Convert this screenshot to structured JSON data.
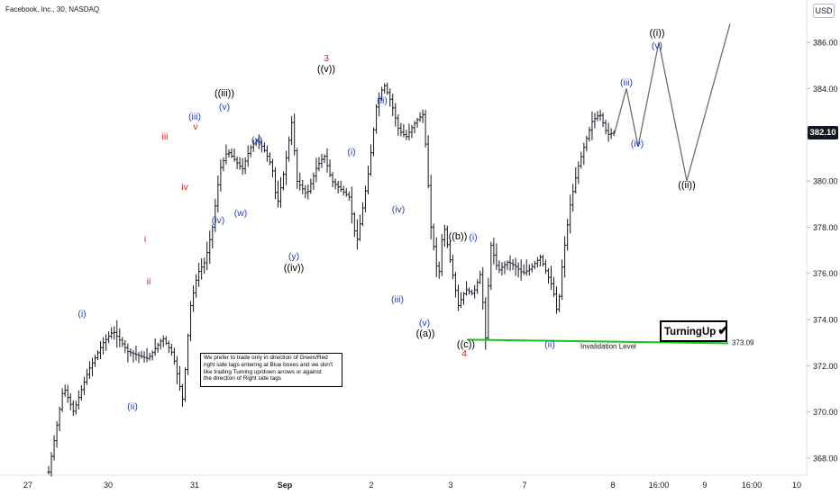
{
  "header": {
    "symbol": "Facebook, Inc., 30, NASDAQ",
    "currency": "USD"
  },
  "last_price": "382.10",
  "note": {
    "lines": [
      "We prefer to trade only in direction of Green/Red",
      "right side tags entering at Blue boxes and we don't",
      "like trading Turning up/down arrows or against",
      "the direction of Right side tags"
    ]
  },
  "brand": {
    "label": "TurningUp",
    "check": "✔"
  },
  "colors": {
    "blue": "#1e3fc2",
    "red": "#d41f1f",
    "black": "#000000",
    "green": "#19c419",
    "bars": "#131722"
  },
  "chart_data": {
    "type": "line",
    "title": "",
    "x_tick_labels": [
      "27",
      "30",
      "31",
      "Sep",
      "2",
      "3",
      "7",
      "8",
      "16:00",
      "9",
      "16:00",
      "10"
    ],
    "y_ticks": [
      368,
      370,
      372,
      374,
      376,
      378,
      380,
      382,
      384,
      386
    ],
    "y_tick_labels": [
      "368.00",
      "370.00",
      "372.00",
      "374.00",
      "376.00",
      "378.00",
      "380.00",
      "382.00",
      "384.00",
      "386.00"
    ],
    "ylim": [
      367.3,
      387.6
    ],
    "last_price": 382.1,
    "price_path": [
      [
        0.0,
        367.4
      ],
      [
        0.3,
        371.1
      ],
      [
        0.5,
        370.0
      ],
      [
        0.8,
        371.8
      ],
      [
        1.1,
        373.0
      ],
      [
        1.3,
        373.5
      ],
      [
        1.6,
        372.6
      ],
      [
        2.0,
        372.3
      ],
      [
        2.3,
        373.2
      ],
      [
        2.5,
        372.5
      ],
      [
        2.7,
        370.5
      ],
      [
        2.85,
        374.5
      ],
      [
        3.0,
        376.0
      ],
      [
        3.15,
        376.5
      ],
      [
        3.3,
        378.0
      ],
      [
        3.45,
        380.5
      ],
      [
        3.6,
        381.3
      ],
      [
        3.75,
        380.9
      ],
      [
        3.9,
        380.5
      ],
      [
        4.05,
        381.4
      ],
      [
        4.2,
        381.8
      ],
      [
        4.35,
        381.3
      ],
      [
        4.5,
        380.6
      ],
      [
        4.6,
        378.9
      ],
      [
        4.75,
        380.5
      ],
      [
        4.9,
        382.6
      ],
      [
        5.0,
        380.0
      ],
      [
        5.2,
        379.4
      ],
      [
        5.4,
        380.6
      ],
      [
        5.55,
        381.1
      ],
      [
        5.7,
        380.0
      ],
      [
        5.9,
        379.6
      ],
      [
        6.05,
        379.3
      ],
      [
        6.2,
        377.3
      ],
      [
        6.3,
        378.5
      ],
      [
        6.45,
        380.5
      ],
      [
        6.6,
        383.2
      ],
      [
        6.75,
        384.2
      ],
      [
        6.9,
        383.4
      ],
      [
        7.05,
        382.2
      ],
      [
        7.2,
        381.9
      ],
      [
        7.4,
        382.6
      ],
      [
        7.55,
        382.9
      ],
      [
        7.7,
        378.0
      ],
      [
        7.85,
        375.7
      ],
      [
        7.95,
        378.2
      ],
      [
        8.1,
        376.4
      ],
      [
        8.25,
        374.6
      ],
      [
        8.4,
        375.3
      ],
      [
        8.55,
        375.1
      ],
      [
        8.7,
        376.0
      ],
      [
        8.8,
        373.2
      ],
      [
        8.9,
        377.3
      ],
      [
        9.05,
        376.1
      ],
      [
        9.25,
        376.5
      ],
      [
        9.4,
        376.3
      ],
      [
        9.55,
        376.0
      ],
      [
        9.7,
        376.2
      ],
      [
        9.9,
        376.7
      ],
      [
        10.05,
        375.9
      ],
      [
        10.15,
        375.4
      ],
      [
        10.25,
        374.2
      ],
      [
        10.35,
        376.5
      ],
      [
        10.5,
        378.9
      ],
      [
        10.65,
        380.5
      ],
      [
        10.8,
        381.6
      ],
      [
        10.95,
        382.6
      ],
      [
        11.1,
        382.9
      ],
      [
        11.25,
        382.0
      ],
      [
        11.4,
        382.1
      ]
    ],
    "projection_path": [
      [
        382.1,
        382.1
      ],
      [
        384.0,
        384.0
      ],
      [
        381.5,
        381.5
      ],
      [
        386.0,
        386.0
      ],
      [
        380.0,
        380.0
      ],
      [
        386.8,
        386.8
      ]
    ],
    "invalidation": {
      "label": "Invalidation Level",
      "value": 373.09,
      "value_label": "373.09"
    },
    "wave_labels": [
      {
        "text": "(i)",
        "color": "blue"
      },
      {
        "text": "(ii)",
        "color": "blue"
      },
      {
        "text": "i",
        "color": "red"
      },
      {
        "text": "ii",
        "color": "red"
      },
      {
        "text": "iii",
        "color": "red"
      },
      {
        "text": "iv",
        "color": "red"
      },
      {
        "text": "v",
        "color": "red"
      },
      {
        "text": "(iii)",
        "color": "blue"
      },
      {
        "text": "(iv)",
        "color": "blue"
      },
      {
        "text": "(v)",
        "color": "blue"
      },
      {
        "text": "((iii))",
        "color": "black"
      },
      {
        "text": "(w)",
        "color": "blue"
      },
      {
        "text": "(x)",
        "color": "blue"
      },
      {
        "text": "(y)",
        "color": "blue"
      },
      {
        "text": "((iv))",
        "color": "black"
      },
      {
        "text": "3",
        "color": "red"
      },
      {
        "text": "((v))",
        "color": "black"
      },
      {
        "text": "(i)",
        "color": "blue"
      },
      {
        "text": "(ii)",
        "color": "blue"
      },
      {
        "text": "(iii)",
        "color": "blue"
      },
      {
        "text": "(iv)",
        "color": "blue"
      },
      {
        "text": "(v)",
        "color": "blue"
      },
      {
        "text": "((a))",
        "color": "black"
      },
      {
        "text": "((b))",
        "color": "black"
      },
      {
        "text": "(i)",
        "color": "blue"
      },
      {
        "text": "((c))",
        "color": "black"
      },
      {
        "text": "4",
        "color": "red"
      },
      {
        "text": "(ii)",
        "color": "blue"
      },
      {
        "text": "(iii)",
        "color": "blue"
      },
      {
        "text": "(iv)",
        "color": "blue"
      },
      {
        "text": "((i))",
        "color": "black"
      },
      {
        "text": "(v)",
        "color": "blue"
      },
      {
        "text": "((ii))",
        "color": "black"
      }
    ]
  }
}
